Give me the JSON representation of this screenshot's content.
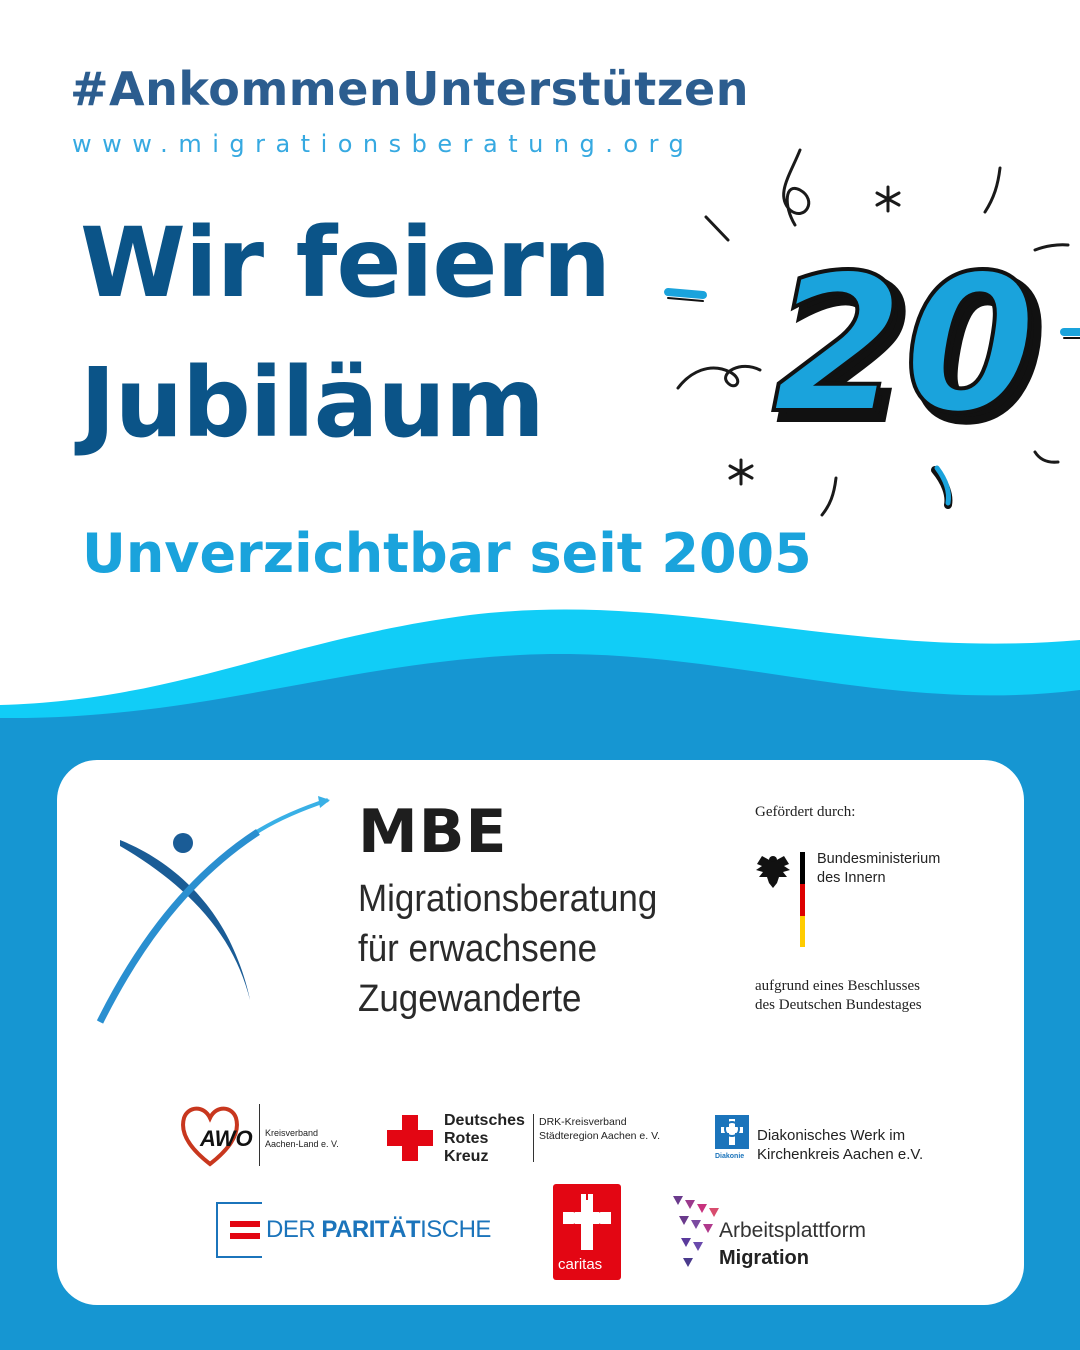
{
  "header": {
    "hashtag": "#AnkommenUnterstützen",
    "website": "www.migrationsberatung.org"
  },
  "headline": {
    "line1": "Wir feiern",
    "line2": "Jubiläum",
    "subline": "Unverzichtbar seit 2005",
    "anniversary_number": "20"
  },
  "colors": {
    "headline": "#0b5488",
    "accent_blue": "#1aa3dc",
    "wave_light": "#11cdf7",
    "wave_dark": "#1696d2",
    "hashtag": "#2c5d8f"
  },
  "mbe": {
    "title": "MBE",
    "line1": "Migrationsberatung",
    "line2": "für erwachsene",
    "line3": "Zugewanderte"
  },
  "funding": {
    "label": "Gefördert durch:",
    "ministry_line1": "Bundesministerium",
    "ministry_line2": "des Innern",
    "resolution_line1": "aufgrund eines Beschlusses",
    "resolution_line2": "des Deutschen Bundestages"
  },
  "partners": {
    "awo": {
      "logo": "AWO",
      "line1": "Kreisverband",
      "line2": "Aachen-Land e. V."
    },
    "drk": {
      "name1": "Deutsches",
      "name2": "Rotes",
      "name3": "Kreuz",
      "line1": "DRK-Kreisverband",
      "line2": "Städteregion Aachen e. V."
    },
    "diakonie": {
      "logo_label": "Diakonie",
      "line1": "Diakonisches Werk im",
      "line2": "Kirchenkreis Aachen e.V."
    },
    "paritaetische": {
      "prefix": "DER ",
      "bold": "PARITÄT",
      "suffix": "ISCHE"
    },
    "caritas": {
      "label": "caritas"
    },
    "arbeitsplattform": {
      "line1": "Arbeitsplattform",
      "line2": "Migration"
    }
  }
}
